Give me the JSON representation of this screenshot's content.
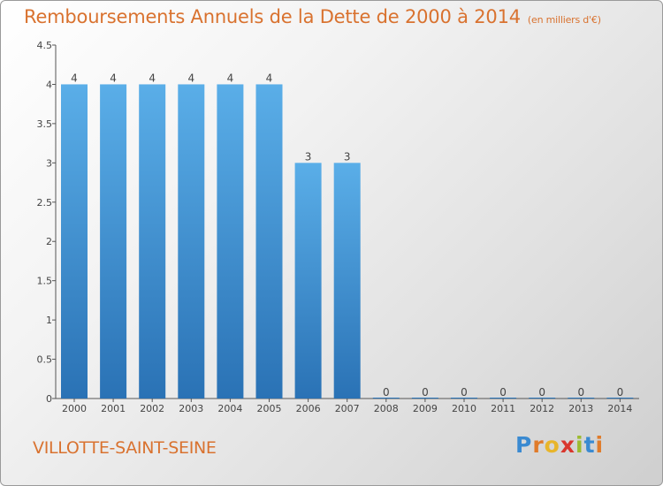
{
  "chart_data": {
    "type": "bar",
    "title": "Remboursements Annuels de la Dette de 2000 à 2014",
    "unit_label": "(en milliers d'€)",
    "categories": [
      "2000",
      "2001",
      "2002",
      "2003",
      "2004",
      "2005",
      "2006",
      "2007",
      "2008",
      "2009",
      "2010",
      "2011",
      "2012",
      "2013",
      "2014"
    ],
    "values": [
      4,
      4,
      4,
      4,
      4,
      4,
      3,
      3,
      0,
      0,
      0,
      0,
      0,
      0,
      0
    ],
    "data_labels": [
      "4",
      "4",
      "4",
      "4",
      "4",
      "4",
      "3",
      "3",
      "0",
      "0",
      "0",
      "0",
      "0",
      "0",
      "0"
    ],
    "ylim": [
      0,
      4.5
    ],
    "yticks": [
      0,
      0.5,
      1,
      1.5,
      2,
      2.5,
      3,
      3.5,
      4,
      4.5
    ],
    "ytick_labels": [
      "0",
      "0.5",
      "1",
      "1.5",
      "2",
      "2.5",
      "3",
      "3.5",
      "4",
      "4.5"
    ],
    "bar_color": "#4a9ad8",
    "bar_color_dark": "#2a74b8",
    "grid": false,
    "legend": "none"
  },
  "footer": {
    "commune": "VILLOTTE-SAINT-SEINE",
    "brand_parts": [
      "P",
      "r",
      "o",
      "x",
      "i",
      "t",
      "i"
    ]
  },
  "colors": {
    "accent": "#d9722f"
  }
}
